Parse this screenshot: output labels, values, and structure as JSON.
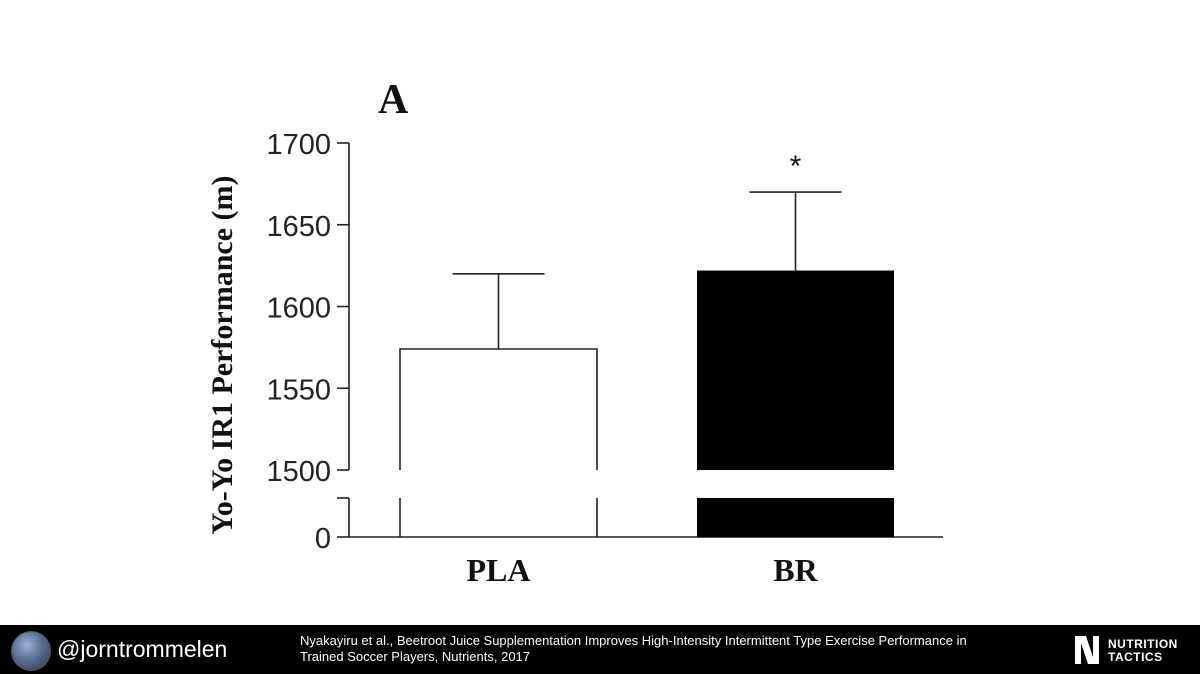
{
  "chart_data": {
    "type": "bar",
    "panel_label": "A",
    "ylabel": "Yo-Yo IR1 Performance (m)",
    "categories": [
      "PLA",
      "BR"
    ],
    "values": [
      1574,
      1622
    ],
    "error_upper": [
      1620,
      1670
    ],
    "bar_fill": [
      "#ffffff",
      "#000000"
    ],
    "significance": [
      "",
      "*"
    ],
    "yticks": [
      1500,
      1550,
      1600,
      1650,
      1700
    ],
    "ytick_labels": [
      "1500",
      "1550",
      "1600",
      "1650",
      "1700"
    ],
    "ylim": [
      1500,
      1700
    ],
    "axis_break": true,
    "baseline_label": "0",
    "grid": false
  },
  "footer": {
    "handle": "@jorntrommelen",
    "citation_line1": "Nyakayiru et al., Beetroot Juice Supplementation Improves High-Intensity Intermittent Type Exercise Performance in",
    "citation_line2": "Trained Soccer Players, Nutrients, 2017",
    "logo_line1": "NUTRITION",
    "logo_line2": "TACTICS"
  }
}
